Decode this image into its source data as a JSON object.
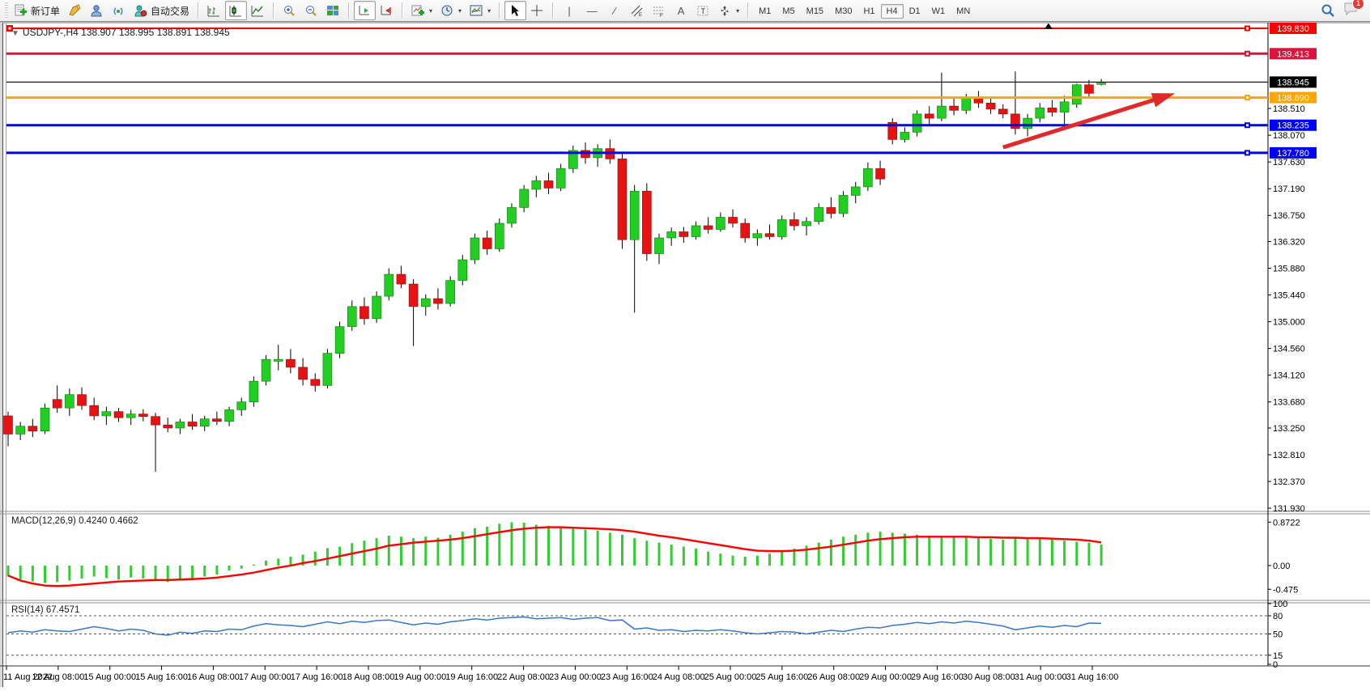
{
  "toolbar": {
    "new_order_label": "新订单",
    "autotrade_label": "自动交易",
    "timeframes": [
      "M1",
      "M5",
      "M15",
      "M30",
      "H1",
      "H4",
      "D1",
      "W1",
      "MN"
    ],
    "active_timeframe": "H4",
    "badge_count": "1"
  },
  "chart_data": {
    "type": "candlestick+indicators",
    "symbol_title": "USDJPY-,H4  138.907 138.995 138.891 138.945",
    "symbol": "USDJPY-",
    "period": "H4",
    "ohlc_current": {
      "open": 138.907,
      "high": 138.995,
      "low": 138.891,
      "close": 138.945
    },
    "colors": {
      "bull": "#23CE23",
      "bear": "#E81212",
      "wick": "#000000",
      "axis": "#000000"
    },
    "x_labels": [
      "11 Aug 2022",
      "12 Aug 08:00",
      "15 Aug 00:00",
      "15 Aug 16:00",
      "16 Aug 08:00",
      "17 Aug 00:00",
      "17 Aug 16:00",
      "18 Aug 08:00",
      "19 Aug 00:00",
      "19 Aug 16:00",
      "22 Aug 08:00",
      "23 Aug 00:00",
      "23 Aug 16:00",
      "24 Aug 08:00",
      "25 Aug 00:00",
      "25 Aug 16:00",
      "26 Aug 08:00",
      "29 Aug 00:00",
      "29 Aug 16:00",
      "30 Aug 08:00",
      "31 Aug 00:00",
      "31 Aug 16:00"
    ],
    "price_ticks": [
      "138.510",
      "138.070",
      "137.630",
      "137.190",
      "136.750",
      "136.320",
      "135.880",
      "135.440",
      "135.000",
      "134.560",
      "134.120",
      "133.680",
      "133.250",
      "132.810",
      "132.370",
      "131.930"
    ],
    "hlines": [
      {
        "label": "139.830",
        "value": 139.83,
        "color": "#FF0000",
        "width": 2
      },
      {
        "label": "139.413",
        "value": 139.413,
        "color": "#DC143C",
        "width": 3
      },
      {
        "label": "138.690",
        "value": 138.69,
        "color": "#FFA500",
        "width": 3
      },
      {
        "label": "138.235",
        "value": 138.235,
        "color": "#0000FF",
        "width": 3
      },
      {
        "label": "137.780",
        "value": 137.78,
        "color": "#0000FF",
        "width": 3
      }
    ],
    "current_price": {
      "label": "138.945",
      "value": 138.945,
      "color": "#000000"
    },
    "annotations": [
      {
        "type": "trend-arrow",
        "color": "#E02A2A",
        "from": {
          "index": 81,
          "price": 137.87
        },
        "to": {
          "index": 95,
          "price": 138.76
        }
      },
      {
        "type": "triangle-marker",
        "color": "#000000",
        "index": 84.7,
        "price": 139.86
      }
    ],
    "candles": [
      [
        133.45,
        133.52,
        132.95,
        133.15
      ],
      [
        133.15,
        133.35,
        133.05,
        133.28
      ],
      [
        133.28,
        133.4,
        133.1,
        133.2
      ],
      [
        133.2,
        133.65,
        133.15,
        133.58
      ],
      [
        133.72,
        133.95,
        133.5,
        133.58
      ],
      [
        133.58,
        133.9,
        133.45,
        133.8
      ],
      [
        133.8,
        133.92,
        133.55,
        133.62
      ],
      [
        133.62,
        133.75,
        133.38,
        133.45
      ],
      [
        133.45,
        133.6,
        133.3,
        133.52
      ],
      [
        133.52,
        133.58,
        133.35,
        133.42
      ],
      [
        133.42,
        133.55,
        133.3,
        133.48
      ],
      [
        133.48,
        133.56,
        133.36,
        133.44
      ],
      [
        133.44,
        133.5,
        132.53,
        133.3
      ],
      [
        133.3,
        133.42,
        133.18,
        133.25
      ],
      [
        133.25,
        133.4,
        133.15,
        133.35
      ],
      [
        133.35,
        133.48,
        133.22,
        133.28
      ],
      [
        133.28,
        133.45,
        133.2,
        133.4
      ],
      [
        133.4,
        133.52,
        133.3,
        133.36
      ],
      [
        133.36,
        133.6,
        133.28,
        133.55
      ],
      [
        133.55,
        133.75,
        133.45,
        133.68
      ],
      [
        133.68,
        134.1,
        133.6,
        134.02
      ],
      [
        134.02,
        134.45,
        133.95,
        134.38
      ],
      [
        134.35,
        134.62,
        134.2,
        134.38
      ],
      [
        134.38,
        134.55,
        134.15,
        134.25
      ],
      [
        134.25,
        134.4,
        133.95,
        134.05
      ],
      [
        134.05,
        134.15,
        133.85,
        133.95
      ],
      [
        133.95,
        134.55,
        133.9,
        134.48
      ],
      [
        134.48,
        135.0,
        134.4,
        134.92
      ],
      [
        134.92,
        135.35,
        134.85,
        135.25
      ],
      [
        135.25,
        135.4,
        134.95,
        135.05
      ],
      [
        135.05,
        135.5,
        134.98,
        135.42
      ],
      [
        135.42,
        135.88,
        135.35,
        135.78
      ],
      [
        135.78,
        135.92,
        135.55,
        135.62
      ],
      [
        135.62,
        135.7,
        134.6,
        135.25
      ],
      [
        135.25,
        135.45,
        135.1,
        135.38
      ],
      [
        135.38,
        135.55,
        135.2,
        135.3
      ],
      [
        135.3,
        135.75,
        135.25,
        135.68
      ],
      [
        135.68,
        136.1,
        135.6,
        136.02
      ],
      [
        136.02,
        136.45,
        135.95,
        136.38
      ],
      [
        136.38,
        136.5,
        136.1,
        136.2
      ],
      [
        136.2,
        136.7,
        136.15,
        136.62
      ],
      [
        136.62,
        136.95,
        136.55,
        136.88
      ],
      [
        136.88,
        137.25,
        136.8,
        137.18
      ],
      [
        137.18,
        137.4,
        137.05,
        137.32
      ],
      [
        137.32,
        137.45,
        137.1,
        137.2
      ],
      [
        137.2,
        137.6,
        137.15,
        137.52
      ],
      [
        137.52,
        137.9,
        137.45,
        137.82
      ],
      [
        137.82,
        137.95,
        137.6,
        137.7
      ],
      [
        137.7,
        137.92,
        137.55,
        137.85
      ],
      [
        137.85,
        138.0,
        137.6,
        137.68
      ],
      [
        137.68,
        137.8,
        136.2,
        136.35
      ],
      [
        136.35,
        137.25,
        135.15,
        137.15
      ],
      [
        137.15,
        137.28,
        136.0,
        136.12
      ],
      [
        136.12,
        136.45,
        135.95,
        136.38
      ],
      [
        136.38,
        136.55,
        136.25,
        136.48
      ],
      [
        136.48,
        136.56,
        136.3,
        136.4
      ],
      [
        136.4,
        136.65,
        136.35,
        136.58
      ],
      [
        136.58,
        136.72,
        136.45,
        136.52
      ],
      [
        136.52,
        136.8,
        136.48,
        136.72
      ],
      [
        136.72,
        136.85,
        136.55,
        136.62
      ],
      [
        136.62,
        136.7,
        136.3,
        136.38
      ],
      [
        136.38,
        136.52,
        136.25,
        136.45
      ],
      [
        136.45,
        136.6,
        136.35,
        136.4
      ],
      [
        136.4,
        136.75,
        136.35,
        136.68
      ],
      [
        136.68,
        136.8,
        136.5,
        136.58
      ],
      [
        136.58,
        136.72,
        136.42,
        136.65
      ],
      [
        136.65,
        136.95,
        136.6,
        136.88
      ],
      [
        136.88,
        137.05,
        136.7,
        136.78
      ],
      [
        136.78,
        137.15,
        136.72,
        137.08
      ],
      [
        137.08,
        137.3,
        136.95,
        137.22
      ],
      [
        137.22,
        137.62,
        137.15,
        137.52
      ],
      [
        137.52,
        137.65,
        137.25,
        137.35
      ],
      [
        138.28,
        138.35,
        137.92,
        138.0
      ],
      [
        138.0,
        138.2,
        137.95,
        138.12
      ],
      [
        138.12,
        138.48,
        138.05,
        138.42
      ],
      [
        138.42,
        138.55,
        138.25,
        138.35
      ],
      [
        138.35,
        139.1,
        138.3,
        138.55
      ],
      [
        138.55,
        138.68,
        138.4,
        138.48
      ],
      [
        138.48,
        138.75,
        138.42,
        138.68
      ],
      [
        138.68,
        138.8,
        138.52,
        138.6
      ],
      [
        138.6,
        138.68,
        138.42,
        138.5
      ],
      [
        138.5,
        138.58,
        138.35,
        138.42
      ],
      [
        138.42,
        139.12,
        138.08,
        138.18
      ],
      [
        138.18,
        138.42,
        138.05,
        138.35
      ],
      [
        138.35,
        138.6,
        138.28,
        138.52
      ],
      [
        138.52,
        138.65,
        138.38,
        138.45
      ],
      [
        138.45,
        138.72,
        138.25,
        138.62
      ],
      [
        138.58,
        138.92,
        138.52,
        138.9
      ],
      [
        138.9,
        138.98,
        138.68,
        138.76
      ],
      [
        138.907,
        138.995,
        138.891,
        138.945
      ]
    ],
    "macd": {
      "label_full": "MACD(12,26,9) 0.4240 0.4662",
      "value": 0.424,
      "signal_value": 0.4662,
      "colors": {
        "histogram": "#33CC33",
        "signal": "#FF0000"
      },
      "ticks": [
        {
          "label": "0.8722",
          "value": 0.8722
        },
        {
          "label": "0.00",
          "value": 0
        },
        {
          "label": "-0.475",
          "value": -0.475
        }
      ],
      "histogram": [
        -0.22,
        -0.28,
        -0.32,
        -0.35,
        -0.33,
        -0.3,
        -0.26,
        -0.22,
        -0.25,
        -0.28,
        -0.24,
        -0.26,
        -0.3,
        -0.33,
        -0.28,
        -0.25,
        -0.22,
        -0.18,
        -0.1,
        -0.06,
        0.02,
        0.1,
        0.14,
        0.18,
        0.22,
        0.28,
        0.35,
        0.38,
        0.45,
        0.5,
        0.55,
        0.6,
        0.58,
        0.55,
        0.58,
        0.56,
        0.62,
        0.68,
        0.75,
        0.78,
        0.84,
        0.87,
        0.86,
        0.82,
        0.8,
        0.78,
        0.74,
        0.72,
        0.7,
        0.66,
        0.62,
        0.55,
        0.5,
        0.46,
        0.42,
        0.38,
        0.34,
        0.28,
        0.24,
        0.2,
        0.18,
        0.2,
        0.24,
        0.28,
        0.34,
        0.4,
        0.46,
        0.52,
        0.58,
        0.62,
        0.66,
        0.68,
        0.66,
        0.64,
        0.62,
        0.6,
        0.58,
        0.56,
        0.58,
        0.56,
        0.54,
        0.52,
        0.55,
        0.53,
        0.55,
        0.52,
        0.5,
        0.48,
        0.46,
        0.424
      ],
      "signal": [
        -0.2,
        -0.3,
        -0.36,
        -0.4,
        -0.41,
        -0.4,
        -0.38,
        -0.36,
        -0.34,
        -0.32,
        -0.31,
        -0.3,
        -0.29,
        -0.29,
        -0.28,
        -0.27,
        -0.26,
        -0.24,
        -0.21,
        -0.18,
        -0.14,
        -0.09,
        -0.04,
        0.0,
        0.05,
        0.09,
        0.14,
        0.19,
        0.24,
        0.29,
        0.34,
        0.4,
        0.43,
        0.46,
        0.48,
        0.5,
        0.52,
        0.55,
        0.59,
        0.63,
        0.67,
        0.71,
        0.74,
        0.76,
        0.77,
        0.77,
        0.76,
        0.75,
        0.74,
        0.73,
        0.71,
        0.68,
        0.64,
        0.6,
        0.57,
        0.53,
        0.49,
        0.45,
        0.41,
        0.37,
        0.33,
        0.3,
        0.29,
        0.29,
        0.3,
        0.32,
        0.35,
        0.38,
        0.42,
        0.46,
        0.5,
        0.53,
        0.55,
        0.57,
        0.58,
        0.58,
        0.58,
        0.58,
        0.58,
        0.57,
        0.57,
        0.56,
        0.56,
        0.55,
        0.55,
        0.54,
        0.53,
        0.52,
        0.5,
        0.4662
      ]
    },
    "rsi": {
      "label_full": "RSI(14) 67.4571",
      "value": 67.4571,
      "color": "#3C77C9",
      "levels": [
        80,
        50,
        15
      ],
      "ticks": [
        "100",
        "80",
        "50",
        "15",
        "0"
      ],
      "values": [
        52,
        55,
        53,
        57,
        55,
        54,
        58,
        62,
        59,
        55,
        58,
        56,
        50,
        48,
        53,
        51,
        55,
        54,
        58,
        57,
        63,
        67,
        65,
        64,
        62,
        66,
        70,
        67,
        71,
        69,
        72,
        73,
        69,
        65,
        68,
        66,
        70,
        72,
        75,
        73,
        76,
        77,
        78,
        75,
        76,
        77,
        74,
        76,
        77,
        72,
        73,
        58,
        60,
        56,
        57,
        54,
        56,
        55,
        57,
        55,
        52,
        50,
        52,
        54,
        53,
        50,
        53,
        56,
        54,
        58,
        61,
        60,
        64,
        66,
        69,
        67,
        70,
        68,
        71,
        69,
        66,
        63,
        57,
        60,
        63,
        61,
        64,
        62,
        68,
        67.4571
      ]
    }
  }
}
